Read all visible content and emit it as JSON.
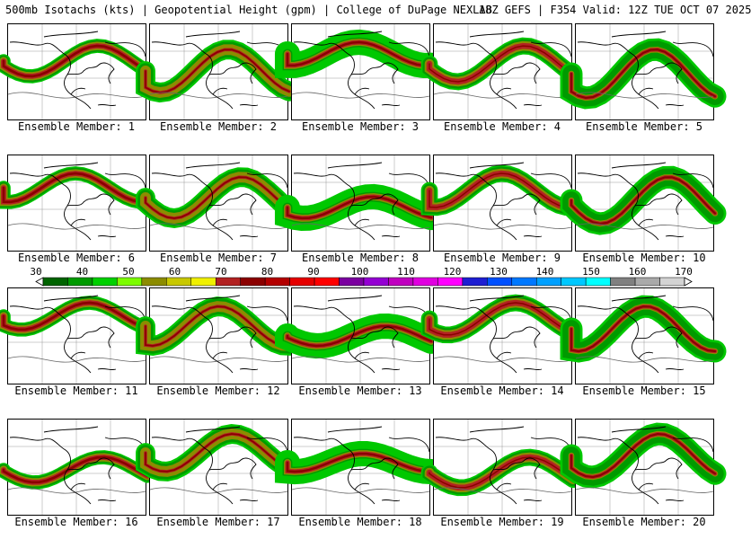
{
  "header": {
    "title": "500mb Isotachs (kts) | Geopotential Height (gpm) | College of DuPage NEXLAB",
    "valid": "18Z GEFS | F354 Valid: 12Z TUE OCT 07 2025"
  },
  "members": [
    "Ensemble Member: 1",
    "Ensemble Member: 2",
    "Ensemble Member: 3",
    "Ensemble Member: 4",
    "Ensemble Member: 5",
    "Ensemble Member: 6",
    "Ensemble Member: 7",
    "Ensemble Member: 8",
    "Ensemble Member: 9",
    "Ensemble Member: 10",
    "Ensemble Member: 11",
    "Ensemble Member: 12",
    "Ensemble Member: 13",
    "Ensemble Member: 14",
    "Ensemble Member: 15",
    "Ensemble Member: 16",
    "Ensemble Member: 17",
    "Ensemble Member: 18",
    "Ensemble Member: 19",
    "Ensemble Member: 20"
  ],
  "colorbar": {
    "labels": [
      "30",
      "40",
      "50",
      "60",
      "70",
      "80",
      "90",
      "100",
      "110",
      "120",
      "130",
      "140",
      "150",
      "160",
      "170"
    ],
    "colors": [
      "#006400",
      "#009a00",
      "#00d000",
      "#7cfc00",
      "#8c8c00",
      "#c8c800",
      "#f0f000",
      "#b22222",
      "#8b0000",
      "#b40000",
      "#e60000",
      "#ff0000",
      "#7b00a0",
      "#9400d3",
      "#c000c0",
      "#e000e0",
      "#ff00ff",
      "#1e1ed2",
      "#0050ff",
      "#0078ff",
      "#00a0ff",
      "#00c8ff",
      "#00ffff",
      "#808080",
      "#a9a9a9",
      "#d3d3d3"
    ]
  }
}
